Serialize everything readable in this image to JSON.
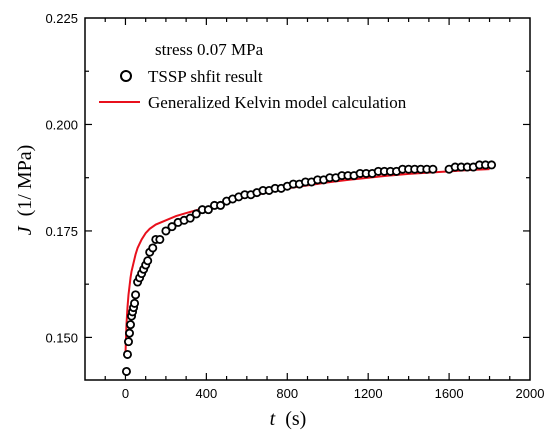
{
  "chart_data": {
    "type": "scatter",
    "annotation": "stress 0.07 MPa",
    "xlabel_var": "t",
    "xlabel_unit": "(s)",
    "ylabel_var": "J",
    "ylabel_unit": "(1/ MPa)",
    "xlim": [
      -200,
      2000
    ],
    "ylim": [
      0.14,
      0.225
    ],
    "x_ticks": [
      0,
      400,
      800,
      1200,
      1600,
      2000
    ],
    "x_tick_labels": [
      "0",
      "400",
      "800",
      "1200",
      "1600",
      "2000"
    ],
    "y_ticks": [
      0.15,
      0.175,
      0.2,
      0.225
    ],
    "y_tick_labels": [
      "0.150",
      "0.175",
      "0.200",
      "0.225"
    ],
    "grid": false,
    "legend_position": "top-center",
    "series": [
      {
        "name": "TSSP shfit result",
        "marker": "open-circle",
        "color": "#000000",
        "x": [
          5,
          10,
          15,
          20,
          25,
          30,
          35,
          40,
          45,
          50,
          60,
          70,
          80,
          90,
          100,
          110,
          120,
          135,
          150,
          170,
          200,
          230,
          260,
          290,
          320,
          350,
          380,
          410,
          440,
          470,
          500,
          530,
          560,
          590,
          620,
          650,
          680,
          710,
          740,
          770,
          800,
          830,
          860,
          890,
          920,
          950,
          980,
          1010,
          1040,
          1070,
          1100,
          1130,
          1160,
          1190,
          1220,
          1250,
          1280,
          1310,
          1340,
          1370,
          1400,
          1430,
          1460,
          1490,
          1520,
          1600,
          1630,
          1660,
          1690,
          1720,
          1750,
          1780,
          1810
        ],
        "y": [
          0.142,
          0.146,
          0.149,
          0.151,
          0.153,
          0.155,
          0.156,
          0.157,
          0.158,
          0.16,
          0.163,
          0.164,
          0.165,
          0.166,
          0.167,
          0.168,
          0.17,
          0.171,
          0.173,
          0.173,
          0.175,
          0.176,
          0.177,
          0.1775,
          0.178,
          0.179,
          0.18,
          0.18,
          0.181,
          0.181,
          0.182,
          0.1825,
          0.183,
          0.1835,
          0.1835,
          0.184,
          0.1845,
          0.1845,
          0.185,
          0.185,
          0.1855,
          0.186,
          0.186,
          0.1865,
          0.1865,
          0.187,
          0.187,
          0.1875,
          0.1875,
          0.188,
          0.188,
          0.188,
          0.1885,
          0.1885,
          0.1885,
          0.189,
          0.189,
          0.189,
          0.189,
          0.1895,
          0.1895,
          0.1895,
          0.1895,
          0.1895,
          0.1895,
          0.1895,
          0.19,
          0.19,
          0.19,
          0.19,
          0.1905,
          0.1905,
          0.1905
        ]
      },
      {
        "name": "Generalized Kelvin model calculation",
        "marker": "line",
        "color": "#e8101c",
        "x": [
          0,
          5,
          10,
          15,
          20,
          25,
          30,
          40,
          50,
          60,
          70,
          80,
          100,
          120,
          150,
          200,
          250,
          300,
          400,
          500,
          600,
          700,
          800,
          900,
          1000,
          1100,
          1200,
          1300,
          1400,
          1500,
          1600,
          1700,
          1800
        ],
        "y": [
          0.146,
          0.153,
          0.157,
          0.16,
          0.162,
          0.164,
          0.1655,
          0.1675,
          0.1695,
          0.171,
          0.172,
          0.173,
          0.1745,
          0.1755,
          0.1765,
          0.1775,
          0.1785,
          0.1792,
          0.1805,
          0.1818,
          0.183,
          0.184,
          0.185,
          0.1857,
          0.1864,
          0.187,
          0.1875,
          0.188,
          0.1884,
          0.1887,
          0.189,
          0.1893,
          0.1895
        ]
      }
    ]
  }
}
